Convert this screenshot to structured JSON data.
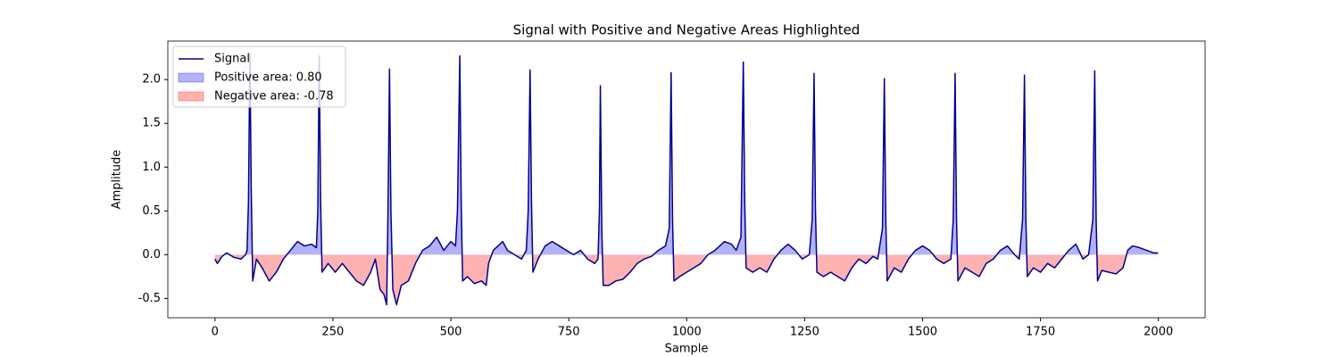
{
  "chart_data": {
    "type": "line",
    "title": "Signal with Positive and Negative Areas Highlighted",
    "x_label": "Sample",
    "y_label": "Amplitude",
    "legend": "upper left",
    "series": [
      {
        "name": "Signal",
        "color": "#00008b",
        "x": [
          0,
          5,
          15,
          25,
          40,
          55,
          65,
          68,
          71,
          74,
          77,
          80,
          88,
          100,
          115,
          130,
          145,
          160,
          175,
          190,
          205,
          215,
          218,
          221,
          224,
          227,
          240,
          255,
          270,
          285,
          300,
          315,
          330,
          340,
          350,
          358,
          364,
          367,
          370,
          373,
          377,
          385,
          395,
          410,
          425,
          440,
          455,
          470,
          485,
          500,
          510,
          514,
          519,
          522,
          525,
          535,
          550,
          565,
          575,
          580,
          590,
          600,
          610,
          620,
          635,
          650,
          660,
          664,
          668,
          671,
          674,
          685,
          700,
          715,
          730,
          745,
          760,
          775,
          790,
          805,
          812,
          815,
          817,
          820,
          823,
          835,
          850,
          865,
          880,
          895,
          910,
          925,
          940,
          955,
          963,
          967,
          970,
          973,
          985,
          1000,
          1015,
          1030,
          1045,
          1060,
          1080,
          1095,
          1105,
          1115,
          1120,
          1123,
          1126,
          1140,
          1155,
          1170,
          1185,
          1200,
          1215,
          1230,
          1245,
          1260,
          1266,
          1270,
          1273,
          1276,
          1290,
          1305,
          1320,
          1335,
          1350,
          1365,
          1380,
          1395,
          1405,
          1415,
          1419,
          1422,
          1425,
          1440,
          1455,
          1470,
          1485,
          1500,
          1515,
          1530,
          1545,
          1560,
          1565,
          1569,
          1572,
          1575,
          1590,
          1605,
          1620,
          1635,
          1650,
          1665,
          1680,
          1695,
          1705,
          1712,
          1716,
          1719,
          1722,
          1735,
          1750,
          1765,
          1780,
          1795,
          1810,
          1825,
          1840,
          1852,
          1861,
          1865,
          1868,
          1871,
          1880,
          1895,
          1910,
          1925,
          1935,
          1945,
          1960,
          1975,
          1990,
          1999
        ],
        "values": [
          -0.05,
          -0.1,
          -0.02,
          0.02,
          -0.03,
          -0.05,
          0.0,
          0.05,
          0.6,
          2.3,
          0.7,
          -0.3,
          -0.05,
          -0.15,
          -0.3,
          -0.2,
          -0.05,
          0.05,
          0.15,
          0.1,
          0.12,
          0.08,
          0.5,
          2.27,
          0.6,
          -0.2,
          -0.1,
          -0.2,
          -0.1,
          -0.2,
          -0.3,
          -0.35,
          -0.2,
          -0.05,
          -0.4,
          -0.45,
          -0.57,
          0.6,
          2.12,
          0.5,
          -0.4,
          -0.57,
          -0.35,
          -0.3,
          -0.1,
          0.05,
          0.1,
          0.2,
          0.05,
          0.15,
          0.1,
          0.5,
          2.27,
          0.6,
          -0.3,
          -0.25,
          -0.33,
          -0.3,
          -0.35,
          -0.1,
          0.05,
          0.1,
          0.15,
          0.05,
          0.0,
          -0.05,
          0.05,
          0.5,
          2.11,
          0.6,
          -0.2,
          -0.05,
          0.1,
          0.15,
          0.1,
          0.05,
          0.0,
          0.05,
          -0.05,
          -0.1,
          -0.05,
          0.5,
          1.93,
          0.3,
          -0.35,
          -0.35,
          -0.3,
          -0.28,
          -0.2,
          -0.1,
          -0.05,
          -0.02,
          0.05,
          0.1,
          0.3,
          2.08,
          0.4,
          -0.3,
          -0.25,
          -0.2,
          -0.15,
          -0.1,
          0.0,
          0.05,
          0.15,
          0.12,
          0.05,
          0.2,
          2.2,
          0.6,
          -0.15,
          -0.2,
          -0.15,
          -0.2,
          -0.05,
          0.05,
          0.12,
          0.05,
          -0.05,
          0.0,
          0.4,
          2.07,
          0.5,
          -0.2,
          -0.25,
          -0.2,
          -0.25,
          -0.3,
          -0.15,
          -0.05,
          -0.1,
          -0.02,
          -0.05,
          0.3,
          2.01,
          0.4,
          -0.3,
          -0.15,
          -0.2,
          -0.05,
          0.05,
          0.1,
          0.05,
          -0.05,
          -0.1,
          -0.05,
          0.4,
          2.07,
          0.4,
          -0.3,
          -0.15,
          -0.2,
          -0.25,
          -0.1,
          -0.05,
          0.05,
          0.1,
          0.0,
          -0.05,
          0.4,
          2.05,
          0.4,
          -0.25,
          -0.15,
          -0.2,
          -0.1,
          -0.15,
          -0.05,
          0.05,
          0.12,
          -0.05,
          0.0,
          0.4,
          2.1,
          0.4,
          -0.3,
          -0.18,
          -0.2,
          -0.22,
          -0.15,
          0.05,
          0.1,
          0.08,
          0.05,
          0.02,
          0.02
        ]
      }
    ],
    "fills": [
      {
        "name": "Positive area: 0.80",
        "color": "#0000ff",
        "alpha": 0.3,
        "side": "positive"
      },
      {
        "name": "Negative area: -0.78",
        "color": "#ff0000",
        "alpha": 0.3,
        "side": "negative"
      }
    ],
    "xlim": [
      -99.95,
      2098.95
    ],
    "xticks": [
      0,
      250,
      500,
      750,
      1000,
      1250,
      1500,
      1750,
      2000
    ],
    "ylim": [
      -0.72,
      2.44
    ],
    "yticks": [
      -0.5,
      {
        "value": 0,
        "label": "0.0"
      },
      0.5,
      {
        "value": 1,
        "label": "1.0"
      },
      1.5,
      {
        "value": 2,
        "label": "2.0"
      }
    ]
  }
}
